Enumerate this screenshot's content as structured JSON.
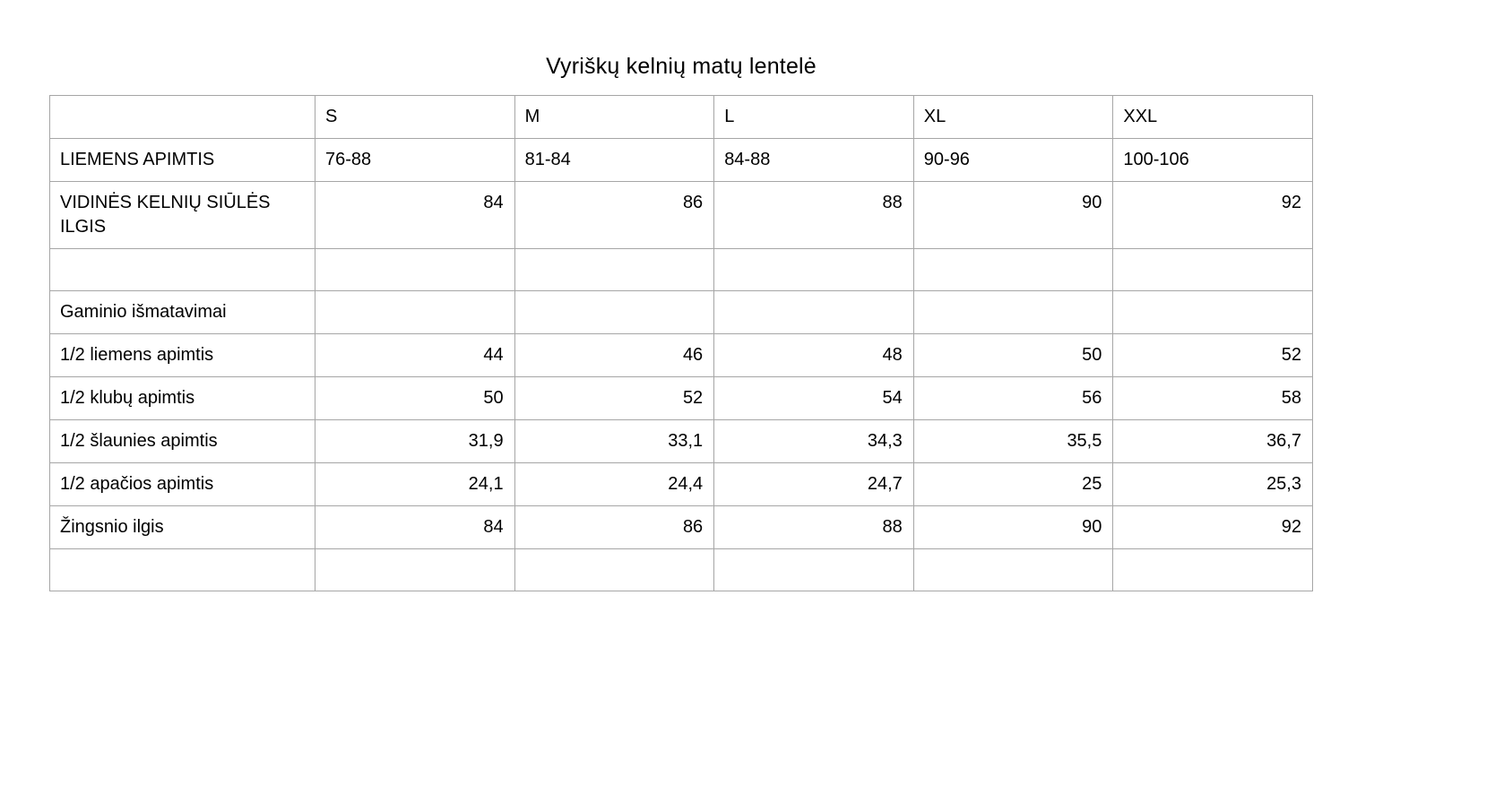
{
  "page": {
    "title": "Vyriškų kelnių matų lentelė"
  },
  "table": {
    "header": [
      "",
      "S",
      "M",
      "L",
      "XL",
      "XXL"
    ],
    "rows": [
      {
        "label": "LIEMENS APIMTIS",
        "values": [
          "76-88",
          "81-84",
          "84-88",
          "90-96",
          "100-106"
        ]
      },
      {
        "label": "VIDINĖS KELNIŲ SIŪLĖS ILGIS",
        "values": [
          "84",
          "86",
          "88",
          "90",
          "92"
        ]
      },
      {
        "label": "",
        "values": [
          "",
          "",
          "",
          "",
          ""
        ]
      },
      {
        "label": "Gaminio išmatavimai",
        "values": [
          "",
          "",
          "",
          "",
          ""
        ]
      },
      {
        "label": "1/2 liemens apimtis",
        "values": [
          "44",
          "46",
          "48",
          "50",
          "52"
        ]
      },
      {
        "label": "1/2 klubų apimtis",
        "values": [
          "50",
          "52",
          "54",
          "56",
          "58"
        ]
      },
      {
        "label": "1/2 šlaunies apimtis",
        "values": [
          "31,9",
          "33,1",
          "34,3",
          "35,5",
          "36,7"
        ]
      },
      {
        "label": "1/2 apačios apimtis",
        "values": [
          "24,1",
          "24,4",
          "24,7",
          "25",
          "25,3"
        ]
      },
      {
        "label": "Žingsnio ilgis",
        "values": [
          "84",
          "86",
          "88",
          "90",
          "92"
        ]
      },
      {
        "label": "",
        "values": [
          "",
          "",
          "",
          "",
          ""
        ]
      }
    ]
  },
  "colors": {
    "border": "#a6a6a6",
    "text": "#000000",
    "background": "#ffffff"
  }
}
